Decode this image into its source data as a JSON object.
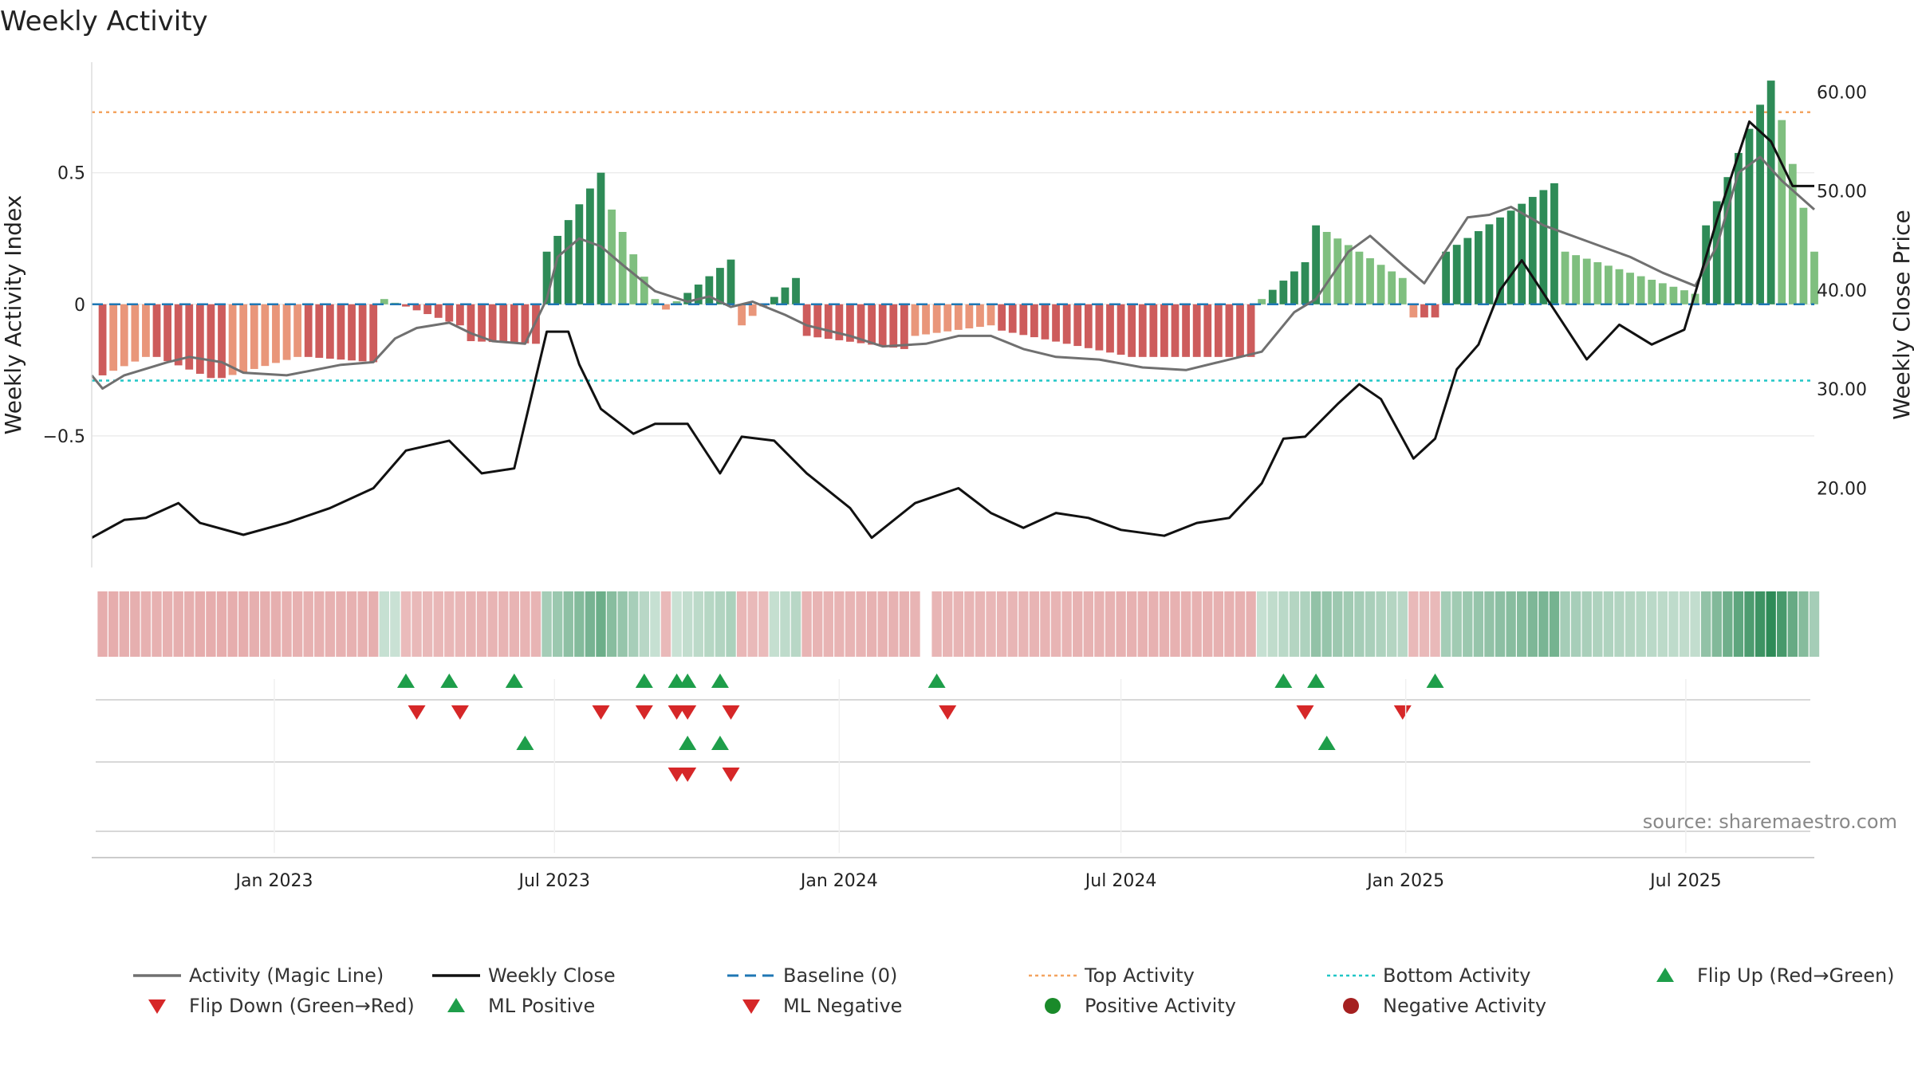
{
  "chart_data": {
    "type": "bar+line",
    "title": "Weekly Activity",
    "ylabel_left": "Weekly Activity Index",
    "ylabel_right": "Weekly Close Price",
    "ylim_left": [
      -1.0,
      0.92
    ],
    "ylim_right": [
      12.0,
      63.0
    ],
    "left_ticks": [
      {
        "value": 0.5,
        "label": "0.5"
      },
      {
        "value": 0,
        "label": "0"
      },
      {
        "value": -0.5,
        "label": "−0.5"
      }
    ],
    "right_ticks": [
      {
        "value": 60,
        "label": "60.00"
      },
      {
        "value": 50,
        "label": "50.00"
      },
      {
        "value": 40,
        "label": "40.00"
      },
      {
        "value": 30,
        "label": "30.00"
      },
      {
        "value": 20,
        "label": "20.00"
      }
    ],
    "x_range": [
      "2022-09-05",
      "2025-09-22"
    ],
    "x_ticks": [
      {
        "date": "2023-01-01",
        "label": "Jan 2023"
      },
      {
        "date": "2023-07-01",
        "label": "Jul 2023"
      },
      {
        "date": "2024-01-01",
        "label": "Jan 2024"
      },
      {
        "date": "2024-07-01",
        "label": "Jul 2024"
      },
      {
        "date": "2025-01-01",
        "label": "Jan 2025"
      },
      {
        "date": "2025-07-01",
        "label": "Jul 2025"
      }
    ],
    "reference_lines": {
      "top_activity": 0.73,
      "bottom_activity": -0.29,
      "baseline": 0
    },
    "segments": [
      {
        "start": "2022-09-12",
        "weeks": 5,
        "from": -0.27,
        "to": -0.2
      },
      {
        "start": "2022-10-17",
        "weeks": 6,
        "from": -0.2,
        "to": -0.28
      },
      {
        "start": "2022-11-28",
        "weeks": 8,
        "from": -0.28,
        "to": -0.2
      },
      {
        "start": "2023-01-23",
        "weeks": 7,
        "from": -0.2,
        "to": -0.22
      },
      {
        "start": "2023-03-13",
        "weeks": 8,
        "from": 0.02,
        "to": -0.08
      },
      {
        "start": "2023-05-08",
        "weeks": 7,
        "from": -0.14,
        "to": -0.15
      },
      {
        "start": "2023-06-26",
        "weeks": 6,
        "from": 0.2,
        "to": 0.5
      },
      {
        "start": "2023-08-07",
        "weeks": 5,
        "from": 0.36,
        "to": 0.02
      },
      {
        "start": "2023-09-11",
        "weeks": 7,
        "from": -0.02,
        "to": 0.17
      },
      {
        "start": "2023-10-30",
        "weeks": 6,
        "from": -0.08,
        "to": 0.1
      },
      {
        "start": "2023-12-11",
        "weeks": 10,
        "from": -0.12,
        "to": -0.17
      },
      {
        "start": "2024-02-19",
        "weeks": 8,
        "from": -0.12,
        "to": -0.08
      },
      {
        "start": "2024-04-15",
        "weeks": 13,
        "from": -0.1,
        "to": -0.2
      },
      {
        "start": "2024-07-15",
        "weeks": 11,
        "from": -0.2,
        "to": -0.2
      },
      {
        "start": "2024-09-30",
        "weeks": 5,
        "from": 0.02,
        "to": 0.16
      },
      {
        "start": "2024-11-04",
        "weeks": 9,
        "from": 0.3,
        "to": 0.1
      },
      {
        "start": "2025-01-06",
        "weeks": 3,
        "from": -0.05,
        "to": -0.05
      },
      {
        "start": "2025-01-27",
        "weeks": 11,
        "from": 0.2,
        "to": 0.46
      },
      {
        "start": "2025-04-14",
        "weeks": 13,
        "from": 0.2,
        "to": 0.04
      },
      {
        "start": "2025-07-14",
        "weeks": 7,
        "from": 0.3,
        "to": 0.85
      },
      {
        "start": "2025-09-01",
        "weeks": 4,
        "from": 0.7,
        "to": 0.2
      }
    ],
    "magic_line": [
      [
        "2022-09-05",
        -0.27
      ],
      [
        "2022-09-12",
        -0.32
      ],
      [
        "2022-09-26",
        -0.27
      ],
      [
        "2022-10-24",
        -0.22
      ],
      [
        "2022-11-07",
        -0.2
      ],
      [
        "2022-11-28",
        -0.22
      ],
      [
        "2022-12-12",
        -0.26
      ],
      [
        "2023-01-09",
        -0.27
      ],
      [
        "2023-02-13",
        -0.23
      ],
      [
        "2023-03-06",
        -0.22
      ],
      [
        "2023-03-20",
        -0.13
      ],
      [
        "2023-04-03",
        -0.09
      ],
      [
        "2023-04-24",
        -0.07
      ],
      [
        "2023-05-08",
        -0.11
      ],
      [
        "2023-05-22",
        -0.14
      ],
      [
        "2023-06-12",
        -0.15
      ],
      [
        "2023-06-26",
        0.02
      ],
      [
        "2023-07-03",
        0.18
      ],
      [
        "2023-07-17",
        0.25
      ],
      [
        "2023-07-31",
        0.22
      ],
      [
        "2023-08-14",
        0.15
      ],
      [
        "2023-09-04",
        0.05
      ],
      [
        "2023-09-25",
        0.01
      ],
      [
        "2023-10-09",
        0.03
      ],
      [
        "2023-10-23",
        -0.01
      ],
      [
        "2023-11-06",
        0.01
      ],
      [
        "2023-11-27",
        -0.04
      ],
      [
        "2023-12-11",
        -0.08
      ],
      [
        "2024-01-08",
        -0.12
      ],
      [
        "2024-01-29",
        -0.16
      ],
      [
        "2024-02-26",
        -0.15
      ],
      [
        "2024-03-18",
        -0.12
      ],
      [
        "2024-04-08",
        -0.12
      ],
      [
        "2024-04-29",
        -0.17
      ],
      [
        "2024-05-20",
        -0.2
      ],
      [
        "2024-06-17",
        -0.21
      ],
      [
        "2024-07-15",
        -0.24
      ],
      [
        "2024-08-12",
        -0.25
      ],
      [
        "2024-09-02",
        -0.22
      ],
      [
        "2024-09-30",
        -0.18
      ],
      [
        "2024-10-21",
        -0.03
      ],
      [
        "2024-11-04",
        0.02
      ],
      [
        "2024-11-25",
        0.2
      ],
      [
        "2024-12-09",
        0.26
      ],
      [
        "2024-12-30",
        0.15
      ],
      [
        "2025-01-13",
        0.08
      ],
      [
        "2025-02-10",
        0.33
      ],
      [
        "2025-02-24",
        0.34
      ],
      [
        "2025-03-10",
        0.37
      ],
      [
        "2025-03-31",
        0.3
      ],
      [
        "2025-04-28",
        0.24
      ],
      [
        "2025-05-26",
        0.18
      ],
      [
        "2025-06-16",
        0.12
      ],
      [
        "2025-07-07",
        0.07
      ],
      [
        "2025-07-21",
        0.22
      ],
      [
        "2025-08-04",
        0.5
      ],
      [
        "2025-08-18",
        0.56
      ],
      [
        "2025-09-01",
        0.47
      ],
      [
        "2025-09-22",
        0.36
      ]
    ],
    "weekly_close": [
      [
        "2022-09-05",
        15.0
      ],
      [
        "2022-09-26",
        16.8
      ],
      [
        "2022-10-10",
        17.0
      ],
      [
        "2022-10-31",
        18.5
      ],
      [
        "2022-11-14",
        16.5
      ],
      [
        "2022-12-12",
        15.3
      ],
      [
        "2023-01-09",
        16.5
      ],
      [
        "2023-02-06",
        18.0
      ],
      [
        "2023-03-06",
        20.0
      ],
      [
        "2023-03-27",
        23.8
      ],
      [
        "2023-04-24",
        24.8
      ],
      [
        "2023-05-15",
        21.5
      ],
      [
        "2023-06-05",
        22.0
      ],
      [
        "2023-06-26",
        35.8
      ],
      [
        "2023-07-10",
        35.8
      ],
      [
        "2023-07-17",
        32.5
      ],
      [
        "2023-07-31",
        28.0
      ],
      [
        "2023-08-21",
        25.5
      ],
      [
        "2023-09-04",
        26.5
      ],
      [
        "2023-09-25",
        26.5
      ],
      [
        "2023-10-16",
        21.5
      ],
      [
        "2023-10-30",
        25.2
      ],
      [
        "2023-11-20",
        24.8
      ],
      [
        "2023-12-11",
        21.5
      ],
      [
        "2024-01-08",
        18.0
      ],
      [
        "2024-01-22",
        15.0
      ],
      [
        "2024-02-19",
        18.5
      ],
      [
        "2024-03-18",
        20.0
      ],
      [
        "2024-04-08",
        17.5
      ],
      [
        "2024-04-29",
        16.0
      ],
      [
        "2024-05-20",
        17.5
      ],
      [
        "2024-06-10",
        17.0
      ],
      [
        "2024-07-01",
        15.8
      ],
      [
        "2024-07-29",
        15.2
      ],
      [
        "2024-08-19",
        16.5
      ],
      [
        "2024-09-09",
        17.0
      ],
      [
        "2024-09-30",
        20.5
      ],
      [
        "2024-10-14",
        25.0
      ],
      [
        "2024-10-28",
        25.2
      ],
      [
        "2024-11-18",
        28.5
      ],
      [
        "2024-12-02",
        30.5
      ],
      [
        "2024-12-16",
        29.0
      ],
      [
        "2025-01-06",
        23.0
      ],
      [
        "2025-01-20",
        25.0
      ],
      [
        "2025-02-03",
        32.0
      ],
      [
        "2025-02-17",
        34.5
      ],
      [
        "2025-03-03",
        40.0
      ],
      [
        "2025-03-17",
        43.0
      ],
      [
        "2025-04-07",
        38.0
      ],
      [
        "2025-04-28",
        33.0
      ],
      [
        "2025-05-19",
        36.5
      ],
      [
        "2025-06-09",
        34.5
      ],
      [
        "2025-06-30",
        36.0
      ],
      [
        "2025-07-21",
        47.0
      ],
      [
        "2025-08-11",
        57.0
      ],
      [
        "2025-08-25",
        55.0
      ],
      [
        "2025-09-08",
        50.5
      ],
      [
        "2025-09-22",
        50.5
      ]
    ],
    "heat_strip": {
      "missing_weeks": [
        "2024-02-26"
      ]
    },
    "signal_rows": [
      {
        "name": "Flip",
        "up": [
          "2023-03-27",
          "2023-04-24",
          "2023-06-05",
          "2023-08-28",
          "2023-09-18",
          "2023-09-25",
          "2023-10-16",
          "2024-03-04",
          "2024-10-14",
          "2024-11-04",
          "2025-01-20"
        ],
        "down": [
          "2023-04-03",
          "2023-05-01",
          "2023-07-31",
          "2023-08-28",
          "2023-09-18",
          "2023-09-25",
          "2023-10-23",
          "2024-03-11",
          "2024-10-28",
          "2024-12-30"
        ]
      },
      {
        "name": "ML",
        "up": [
          "2023-06-12",
          "2023-09-25",
          "2023-10-16",
          "2024-11-11"
        ],
        "down": [
          "2023-09-18",
          "2023-09-25",
          "2023-10-23"
        ]
      },
      {
        "name": "Activity",
        "up": [],
        "down": []
      }
    ],
    "legend": [
      {
        "label": "Activity (Magic Line)",
        "kind": "line",
        "color": "#707070"
      },
      {
        "label": "Weekly Close",
        "kind": "line",
        "color": "#111111"
      },
      {
        "label": "Baseline (0)",
        "kind": "dashed",
        "color": "#1f77b4"
      },
      {
        "label": "Top Activity",
        "kind": "dotted",
        "color": "#f4a460"
      },
      {
        "label": "Bottom Activity",
        "kind": "dotted",
        "color": "#20c6c6"
      },
      {
        "label": "Flip Up (Red→Green)",
        "kind": "tri-up",
        "color": "#1e9e4a"
      },
      {
        "label": "Flip Down (Green→Red)",
        "kind": "tri-down",
        "color": "#d62728"
      },
      {
        "label": "ML Positive",
        "kind": "tri-up",
        "color": "#1e9e4a"
      },
      {
        "label": "ML Negative",
        "kind": "tri-down",
        "color": "#d62728"
      },
      {
        "label": "Positive Activity",
        "kind": "dot",
        "color": "#1a8a2a"
      },
      {
        "label": "Negative Activity",
        "kind": "dot",
        "color": "#a52020"
      }
    ],
    "source": "source: sharemaestro.com"
  },
  "colors": {
    "pos_strong": "#2e8b57",
    "pos_light": "#7fbf7f",
    "neg_strong": "#cd5c5c",
    "neg_light": "#e9967a",
    "magic_line": "#707070",
    "close_line": "#111111",
    "baseline": "#1f77b4",
    "top_line": "#f4a460",
    "bottom_line": "#20c6c6",
    "tri_up": "#1e9e4a",
    "tri_down": "#d62728"
  }
}
